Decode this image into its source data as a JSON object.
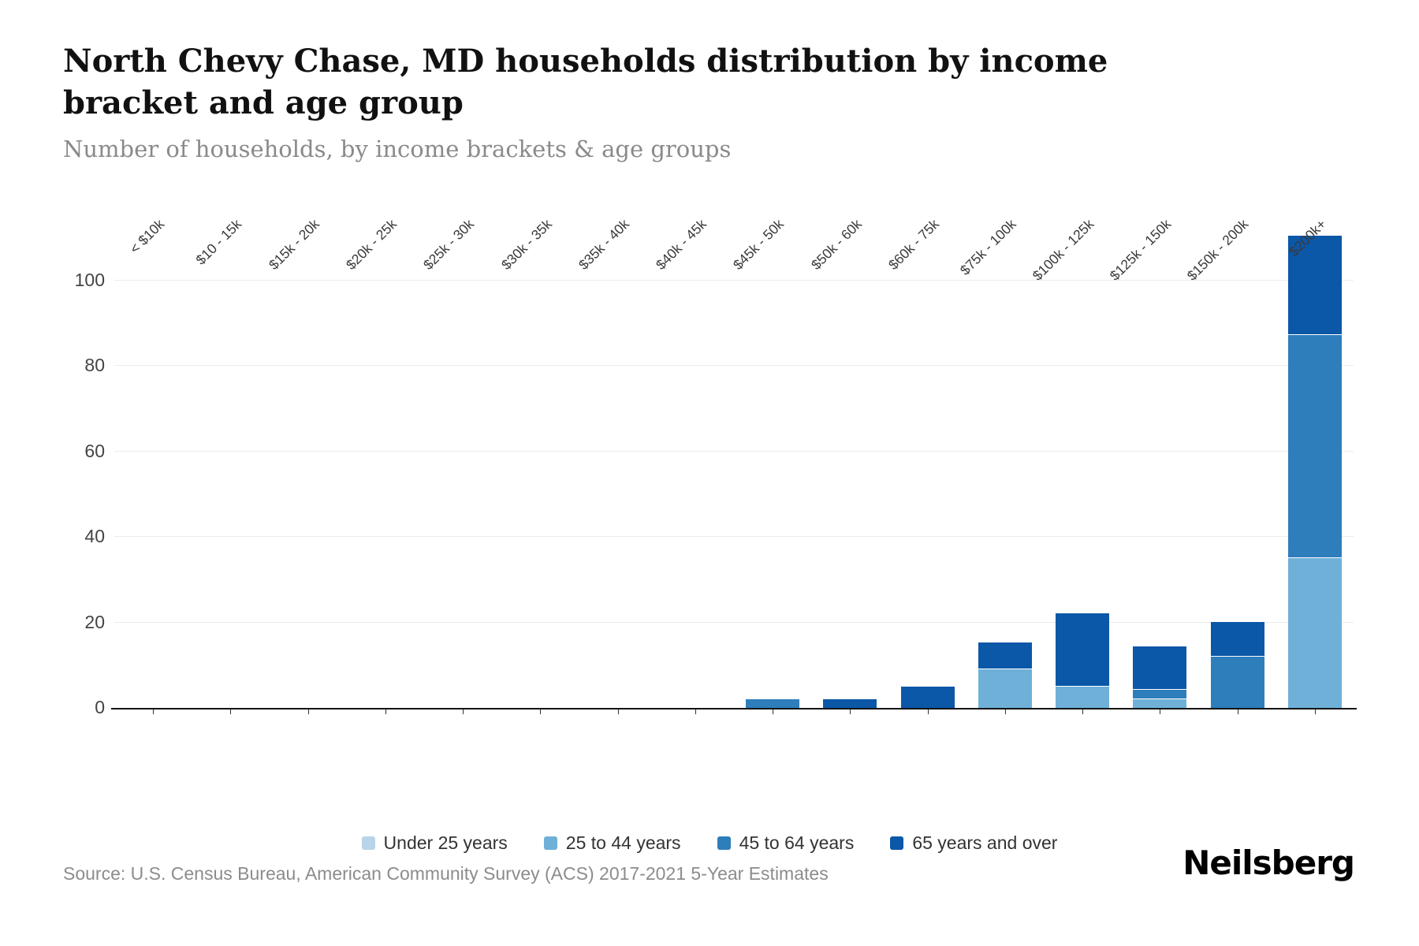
{
  "header": {
    "title": "North Chevy Chase, MD households distribution by income bracket and age group",
    "subtitle": "Number of households, by income brackets & age groups"
  },
  "footer": {
    "source": "Source: U.S. Census Bureau, American Community Survey (ACS) 2017-2021 5-Year Estimates",
    "brand": "Neilsberg"
  },
  "colors": {
    "axis": "#141414",
    "grid": "#ececec",
    "tick_text": "#444444",
    "label_text": "#3a3a3a",
    "muted_text": "#8c8c8c"
  },
  "chart_data": {
    "type": "bar",
    "stacked": true,
    "title": "North Chevy Chase, MD households distribution by income bracket and age group",
    "xlabel": "",
    "ylabel": "",
    "grid": true,
    "legend_position": "bottom",
    "yticks": [
      0,
      20,
      40,
      60,
      80,
      100
    ],
    "ylim": [
      0,
      117
    ],
    "categories": [
      "< $10k",
      "$10 - 15k",
      "$15k - 20k",
      "$20k - 25k",
      "$25k - 30k",
      "$30k - 35k",
      "$35k - 40k",
      "$40k - 45k",
      "$45k - 50k",
      "$50k - 60k",
      "$60k - 75k",
      "$75k - 100k",
      "$100k - 125k",
      "$125k - 150k",
      "$150k - 200k",
      "$200k+"
    ],
    "series": [
      {
        "name": "Under 25 years",
        "color": "#b8d4e8",
        "values": [
          0,
          0,
          0,
          0,
          0,
          0,
          0,
          0,
          0,
          0,
          0,
          0,
          0,
          0,
          0,
          0
        ]
      },
      {
        "name": "25 to 44 years",
        "color": "#6fb0d8",
        "values": [
          0,
          0,
          0,
          0,
          0,
          0,
          0,
          0,
          0,
          0,
          0,
          9,
          5,
          2,
          0,
          35
        ]
      },
      {
        "name": "45 to 64 years",
        "color": "#2e7ebc",
        "values": [
          0,
          0,
          0,
          0,
          0,
          0,
          0,
          0,
          2,
          0,
          0,
          0,
          0,
          2,
          12,
          52
        ]
      },
      {
        "name": "65 years and over",
        "color": "#0b57a8",
        "values": [
          0,
          0,
          0,
          0,
          0,
          0,
          0,
          0,
          0,
          2,
          5,
          6,
          17,
          10,
          8,
          23
        ]
      }
    ],
    "totals_by_category": [
      0,
      0,
      0,
      0,
      0,
      0,
      0,
      0,
      2,
      2,
      5,
      15,
      22,
      14,
      20,
      110
    ]
  }
}
